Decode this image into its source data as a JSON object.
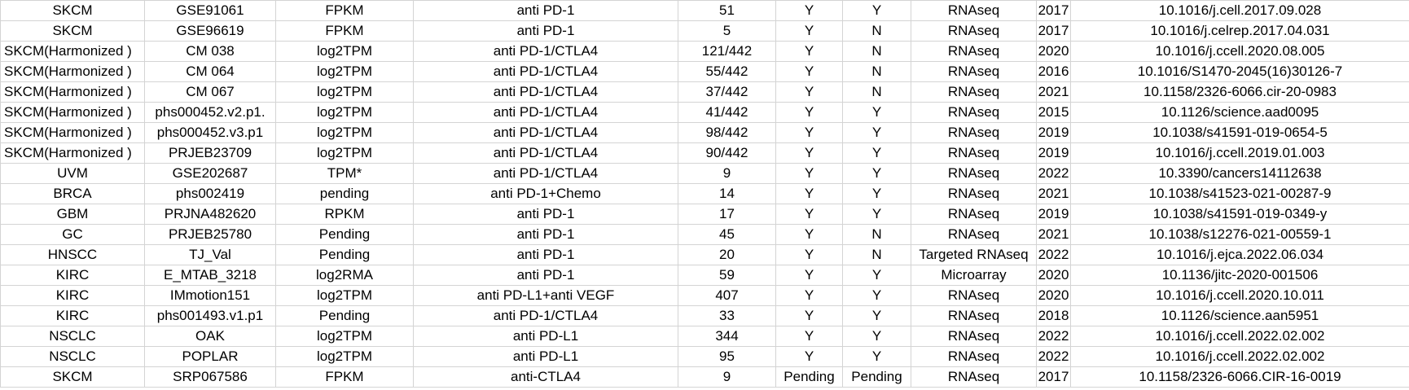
{
  "rows": [
    [
      "SKCM",
      "GSE91061",
      "FPKM",
      "anti PD-1",
      "51",
      "Y",
      "Y",
      "RNAseq",
      "2017",
      "10.1016/j.cell.2017.09.028"
    ],
    [
      "SKCM",
      "GSE96619",
      "FPKM",
      "anti PD-1",
      "5",
      "Y",
      "N",
      "RNAseq",
      "2017",
      "10.1016/j.celrep.2017.04.031"
    ],
    [
      "SKCM(Harmonized )",
      "CM 038",
      "log2TPM",
      "anti PD-1/CTLA4",
      "121/442",
      "Y",
      "N",
      "RNAseq",
      "2020",
      "10.1016/j.ccell.2020.08.005"
    ],
    [
      "SKCM(Harmonized )",
      "CM 064",
      "log2TPM",
      "anti PD-1/CTLA4",
      "55/442",
      "Y",
      "N",
      "RNAseq",
      "2016",
      "10.1016/S1470-2045(16)30126-7"
    ],
    [
      "SKCM(Harmonized )",
      "CM 067",
      "log2TPM",
      "anti PD-1/CTLA4",
      "37/442",
      "Y",
      "N",
      "RNAseq",
      "2021",
      "10.1158/2326-6066.cir-20-0983"
    ],
    [
      "SKCM(Harmonized )",
      "phs000452.v2.p1.",
      "log2TPM",
      "anti PD-1/CTLA4",
      "41/442",
      "Y",
      "Y",
      "RNAseq",
      "2015",
      "10.1126/science.aad0095"
    ],
    [
      "SKCM(Harmonized )",
      "phs000452.v3.p1",
      "log2TPM",
      "anti PD-1/CTLA4",
      "98/442",
      "Y",
      "Y",
      "RNAseq",
      "2019",
      "10.1038/s41591-019-0654-5"
    ],
    [
      "SKCM(Harmonized )",
      "PRJEB23709",
      "log2TPM",
      "anti PD-1/CTLA4",
      "90/442",
      "Y",
      "Y",
      "RNAseq",
      "2019",
      "10.1016/j.ccell.2019.01.003"
    ],
    [
      "UVM",
      "GSE202687",
      "TPM*",
      "anti PD-1/CTLA4",
      "9",
      "Y",
      "Y",
      "RNAseq",
      "2022",
      "10.3390/cancers14112638"
    ],
    [
      "BRCA",
      "phs002419",
      "pending",
      "anti PD-1+Chemo",
      "14",
      "Y",
      "Y",
      "RNAseq",
      "2021",
      "10.1038/s41523-021-00287-9"
    ],
    [
      "GBM",
      "PRJNA482620",
      "RPKM",
      "anti PD-1",
      "17",
      "Y",
      "Y",
      "RNAseq",
      "2019",
      "10.1038/s41591-019-0349-y"
    ],
    [
      "GC",
      "PRJEB25780",
      "Pending",
      "anti PD-1",
      "45",
      "Y",
      "N",
      "RNAseq",
      "2021",
      "10.1038/s12276-021-00559-1"
    ],
    [
      "HNSCC",
      "TJ_Val",
      "Pending",
      "anti PD-1",
      "20",
      "Y",
      "N",
      "Targeted RNAseq",
      "2022",
      "10.1016/j.ejca.2022.06.034"
    ],
    [
      "KIRC",
      "E_MTAB_3218",
      "log2RMA",
      "anti PD-1",
      "59",
      "Y",
      "Y",
      "Microarray",
      "2020",
      "10.1136/jitc-2020-001506"
    ],
    [
      "KIRC",
      "IMmotion151",
      "log2TPM",
      "anti PD-L1+anti VEGF",
      "407",
      "Y",
      "Y",
      "RNAseq",
      "2020",
      "10.1016/j.ccell.2020.10.011"
    ],
    [
      "KIRC",
      "phs001493.v1.p1",
      "Pending",
      "anti PD-1/CTLA4",
      "33",
      "Y",
      "Y",
      "RNAseq",
      "2018",
      "10.1126/science.aan5951"
    ],
    [
      "NSCLC",
      "OAK",
      "log2TPM",
      "anti PD-L1",
      "344",
      "Y",
      "Y",
      "RNAseq",
      "2022",
      "10.1016/j.ccell.2022.02.002"
    ],
    [
      "NSCLC",
      "POPLAR",
      "log2TPM",
      "anti PD-L1",
      "95",
      "Y",
      "Y",
      "RNAseq",
      "2022",
      "10.1016/j.ccell.2022.02.002"
    ],
    [
      "SKCM",
      "SRP067586",
      "FPKM",
      "anti-CTLA4",
      "9",
      "Pending",
      "Pending",
      "RNAseq",
      "2017",
      "10.1158/2326-6066.CIR-16-0019"
    ]
  ]
}
